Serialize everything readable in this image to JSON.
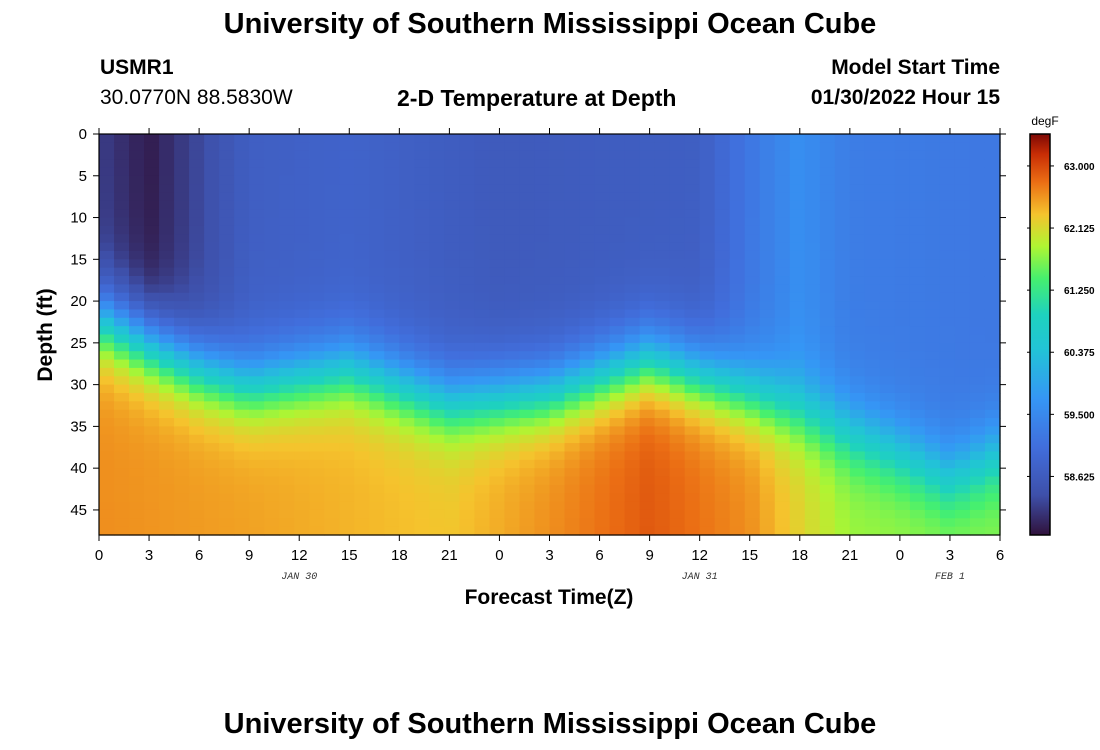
{
  "header": {
    "title": "University of Southern Mississippi Ocean Cube",
    "station": "USMR1",
    "location": "30.0770N  88.5830W",
    "subtitle": "2-D Temperature at Depth",
    "model_start_label": "Model Start Time",
    "model_start_value": "01/30/2022 Hour 15"
  },
  "footer": {
    "title": "University of Southern Mississippi Ocean Cube"
  },
  "colorbar": {
    "unit": "degF",
    "ticks": [
      "63.000",
      "62.125",
      "61.250",
      "60.375",
      "59.500",
      "58.625"
    ],
    "tick_values": [
      63.0,
      62.125,
      61.25,
      60.375,
      59.5,
      58.625
    ],
    "range": [
      57.8,
      63.45
    ]
  },
  "chart_data": {
    "type": "heatmap",
    "xlabel": "Forecast Time(Z)",
    "ylabel": "Depth (ft)",
    "x_tick_labels": [
      "0",
      "3",
      "6",
      "9",
      "12",
      "15",
      "18",
      "21",
      "0",
      "3",
      "6",
      "9",
      "12",
      "15",
      "18",
      "21",
      "0",
      "3",
      "6"
    ],
    "x_range_hours": [
      0,
      54
    ],
    "date_labels": [
      {
        "label": "JAN 30",
        "hour": 12
      },
      {
        "label": "JAN 31",
        "hour": 36
      },
      {
        "label": "FEB 1",
        "hour": 51
      }
    ],
    "y_tick_labels": [
      "0",
      "5",
      "10",
      "15",
      "20",
      "25",
      "30",
      "35",
      "40",
      "45"
    ],
    "y_tick_values": [
      0,
      5,
      10,
      15,
      20,
      25,
      30,
      35,
      40,
      45
    ],
    "ylim": [
      0,
      48
    ],
    "y_inverted": true,
    "value_unit": "degF",
    "surface_layer_temp": [
      {
        "hour": 0,
        "temp": 58.2
      },
      {
        "hour": 3,
        "temp": 57.9
      },
      {
        "hour": 6,
        "temp": 58.3
      },
      {
        "hour": 9,
        "temp": 58.7
      },
      {
        "hour": 15,
        "temp": 58.8
      },
      {
        "hour": 24,
        "temp": 58.6
      },
      {
        "hour": 36,
        "temp": 58.7
      },
      {
        "hour": 39,
        "temp": 59.2
      },
      {
        "hour": 42,
        "temp": 59.6
      },
      {
        "hour": 45,
        "temp": 59.3
      },
      {
        "hour": 54,
        "temp": 59.2
      }
    ],
    "thermocline_depth_ft": [
      {
        "hour": 0,
        "depth": 22
      },
      {
        "hour": 6,
        "depth": 28
      },
      {
        "hour": 9,
        "depth": 30
      },
      {
        "hour": 15,
        "depth": 28
      },
      {
        "hour": 21,
        "depth": 32
      },
      {
        "hour": 27,
        "depth": 31
      },
      {
        "hour": 33,
        "depth": 27
      },
      {
        "hour": 42,
        "depth": 33
      },
      {
        "hour": 48,
        "depth": 38
      },
      {
        "hour": 51,
        "depth": 41
      },
      {
        "hour": 54,
        "depth": 38
      }
    ],
    "bottom_layer_temp": [
      {
        "hour": 0,
        "temp": 62.6
      },
      {
        "hour": 9,
        "temp": 62.5
      },
      {
        "hour": 21,
        "temp": 62.3
      },
      {
        "hour": 33,
        "temp": 62.9
      },
      {
        "hour": 39,
        "temp": 62.6
      },
      {
        "hour": 45,
        "temp": 61.8
      },
      {
        "hour": 54,
        "temp": 61.7
      }
    ]
  }
}
